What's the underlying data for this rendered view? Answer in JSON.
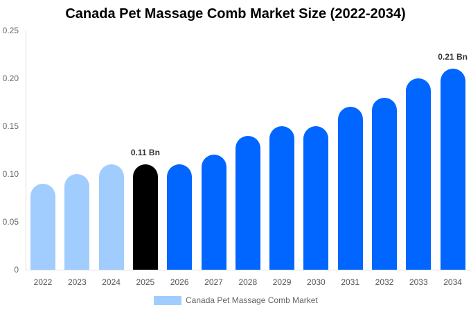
{
  "chart_data": {
    "type": "bar",
    "title": "Canada Pet Massage Comb Market Size (2022-2034)",
    "xlabel": "",
    "ylabel": "",
    "ylim": [
      0,
      0.25
    ],
    "yticks": [
      "0",
      "0.05",
      "0.10",
      "0.15",
      "0.20",
      "0.25"
    ],
    "categories": [
      "2022",
      "2023",
      "2024",
      "2025",
      "2026",
      "2027",
      "2028",
      "2029",
      "2030",
      "2031",
      "2032",
      "2033",
      "2034"
    ],
    "series": [
      {
        "name": "Canada Pet Massage Comb Market",
        "values": [
          0.09,
          0.1,
          0.11,
          0.11,
          0.11,
          0.12,
          0.14,
          0.15,
          0.15,
          0.17,
          0.18,
          0.2,
          0.21
        ]
      }
    ],
    "bar_colors": [
      "#a0cdfd",
      "#a0cdfd",
      "#a0cdfd",
      "#000000",
      "#0066ff",
      "#0066ff",
      "#0066ff",
      "#0066ff",
      "#0066ff",
      "#0066ff",
      "#0066ff",
      "#0066ff",
      "#0066ff"
    ],
    "annotations": [
      {
        "category": "2025",
        "text": "0.11 Bn"
      },
      {
        "category": "2034",
        "text": "0.21 Bn"
      }
    ],
    "legend": {
      "label": "Canada Pet Massage Comb Market",
      "color": "#a0cdfd",
      "position": "bottom"
    },
    "grid": false
  }
}
